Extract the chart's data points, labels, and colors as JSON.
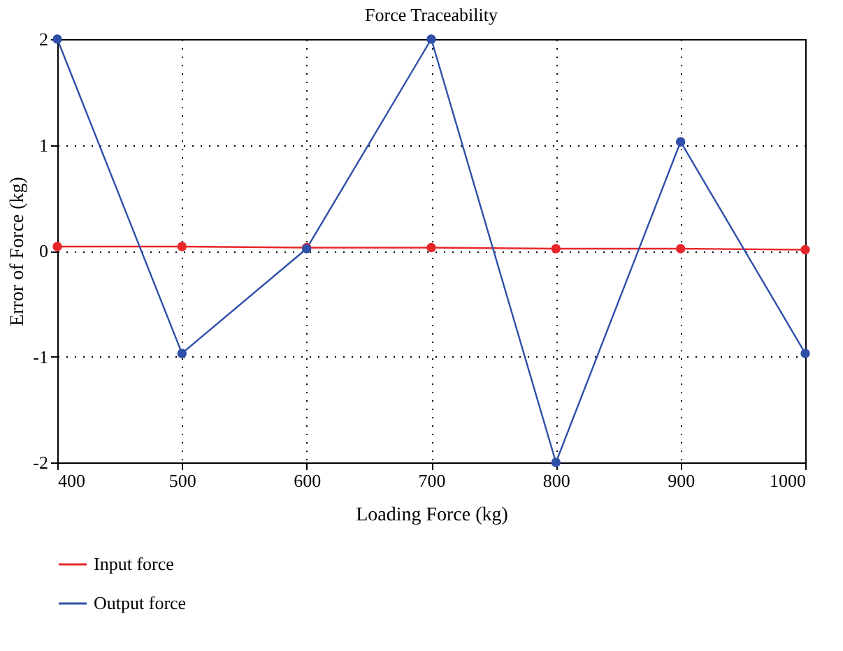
{
  "chart_data": {
    "type": "line",
    "title": "Force Traceability",
    "xlabel": "Loading Force (kg)",
    "ylabel": "Error of Force (kg)",
    "x": [
      400,
      500,
      600,
      700,
      800,
      900,
      1000
    ],
    "series": [
      {
        "name": "Input force",
        "color": "#e8262a",
        "values": [
          0.04,
          0.04,
          0.03,
          0.03,
          0.02,
          0.02,
          0.01
        ]
      },
      {
        "name": "Output force",
        "color": "#2f4fa8",
        "values": [
          2,
          -0.97,
          0.02,
          2,
          -2,
          1.03,
          -0.97
        ]
      }
    ],
    "xlim": [
      400,
      1000
    ],
    "xticks": [
      400,
      500,
      600,
      700,
      800,
      900,
      1000
    ],
    "ylim": [
      -2,
      2
    ],
    "yticks": [
      -2,
      -1,
      0,
      1,
      2
    ],
    "grid": true,
    "legend": "bottom",
    "marker": "circle",
    "line_style": "solid"
  }
}
